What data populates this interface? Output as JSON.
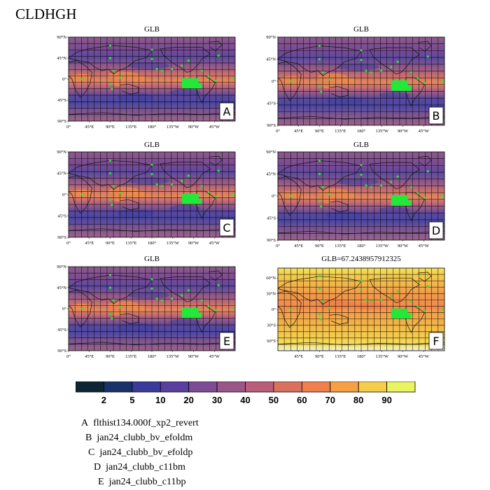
{
  "title": "CLDHGH",
  "panels": [
    {
      "id": "A",
      "title": "GLB",
      "letter": "A",
      "projection": "cylindrical",
      "lat_ticks": [
        "90°N",
        "45°N",
        "0°",
        "45°S",
        "90°S"
      ],
      "lon_ticks": [
        "0°",
        "45°E",
        "90°E",
        "135°E",
        "180°",
        "135°W",
        "90°W",
        "45°W"
      ]
    },
    {
      "id": "B",
      "title": "GLB",
      "letter": "B",
      "projection": "cylindrical",
      "lat_ticks": [
        "90°N",
        "45°N",
        "0°",
        "45°S",
        "90°S"
      ],
      "lon_ticks": [
        "0°",
        "45°E",
        "90°E",
        "135°E",
        "180°",
        "135°W",
        "90°W",
        "45°W"
      ]
    },
    {
      "id": "C",
      "title": "GLB",
      "letter": "C",
      "projection": "cylindrical",
      "lat_ticks": [
        "90°N",
        "45°N",
        "0°",
        "45°S",
        "90°S"
      ],
      "lon_ticks": [
        "0°",
        "45°E",
        "90°E",
        "135°E",
        "180°",
        "135°W",
        "90°W",
        "45°W"
      ]
    },
    {
      "id": "D",
      "title": "GLB",
      "letter": "D",
      "projection": "cylindrical",
      "lat_ticks": [
        "90°N",
        "45°N",
        "0°",
        "45°S",
        "90°S"
      ],
      "lon_ticks": [
        "0°",
        "45°E",
        "90°E",
        "135°E",
        "180°",
        "135°W",
        "90°W",
        "45°W"
      ]
    },
    {
      "id": "E",
      "title": "GLB",
      "letter": "E",
      "projection": "cylindrical",
      "lat_ticks": [
        "90°N",
        "45°N",
        "0°",
        "45°S",
        "90°S"
      ],
      "lon_ticks": [
        "0°",
        "45°E",
        "90°E",
        "135°E",
        "180°",
        "135°W",
        "90°W",
        "45°W"
      ]
    },
    {
      "id": "F",
      "title": "GLB=67.2438957912325",
      "letter": "F",
      "projection": "cylindrical",
      "lat_ticks": [
        "60°N",
        "30°N",
        "0°",
        "30°S",
        "60°S"
      ],
      "lon_ticks": [
        "45°E",
        "90°E",
        "135°E",
        "180°",
        "135°W",
        "90°W",
        "45°W"
      ]
    }
  ],
  "colorbar": {
    "colors": [
      "#0e2533",
      "#19336a",
      "#3b3a9a",
      "#5b3f9e",
      "#7d4c94",
      "#9a5687",
      "#b95e78",
      "#d9715f",
      "#f0804e",
      "#f6a045",
      "#f4ce4b",
      "#e8f462"
    ],
    "labels": [
      "2",
      "5",
      "10",
      "20",
      "30",
      "40",
      "50",
      "60",
      "70",
      "80",
      "90"
    ]
  },
  "legend": [
    {
      "letter": "A",
      "name": "flthist134.000f_xp2_revert"
    },
    {
      "letter": "B",
      "name": "jan24_clubb_bv_efoldm"
    },
    {
      "letter": "C",
      "name": "jan24_clubb_bv_efoldp"
    },
    {
      "letter": "D",
      "name": "jan24_clubb_c11bm"
    },
    {
      "letter": "E",
      "name": "jan24_clubb_c11bp"
    }
  ]
}
